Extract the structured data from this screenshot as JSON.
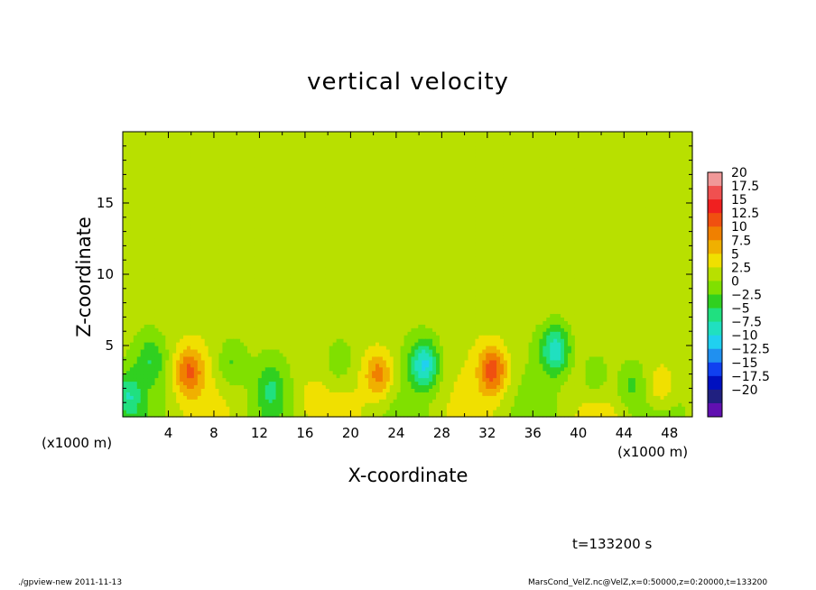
{
  "chart_data": {
    "type": "heatmap",
    "title": "vertical velocity",
    "xlabel": "X-coordinate",
    "ylabel": "Z-coordinate",
    "x_unit_left": "(x1000 m)",
    "x_unit_right": "(x1000 m)",
    "xlim": [
      0,
      50
    ],
    "ylim": [
      0,
      20
    ],
    "x_ticks": [
      4,
      8,
      12,
      16,
      20,
      24,
      28,
      32,
      36,
      40,
      44,
      48
    ],
    "y_ticks": [
      5,
      10,
      15
    ],
    "background_value": 1.2,
    "features": [
      {
        "x": 0.5,
        "z": 1.5,
        "value": -6
      },
      {
        "x": 2.5,
        "z": 4.0,
        "value": -4
      },
      {
        "x": 5.8,
        "z": 3.2,
        "value": 10
      },
      {
        "x": 9.5,
        "z": 3.8,
        "value": -3
      },
      {
        "x": 13.0,
        "z": 2.0,
        "value": -4
      },
      {
        "x": 16.3,
        "z": 1.2,
        "value": 3
      },
      {
        "x": 19.0,
        "z": 4.0,
        "value": -3
      },
      {
        "x": 22.5,
        "z": 3.0,
        "value": 9
      },
      {
        "x": 26.5,
        "z": 3.7,
        "value": -10
      },
      {
        "x": 32.5,
        "z": 3.3,
        "value": 11
      },
      {
        "x": 38.0,
        "z": 4.7,
        "value": -9
      },
      {
        "x": 41.5,
        "z": 3.0,
        "value": -3
      },
      {
        "x": 44.5,
        "z": 2.2,
        "value": -3
      },
      {
        "x": 47.3,
        "z": 2.3,
        "value": 6
      }
    ],
    "colorbar": {
      "levels": [
        "20",
        "17.5",
        "15",
        "12.5",
        "10",
        "7.5",
        "5",
        "2.5",
        "0",
        "−2.5",
        "−5",
        "−7.5",
        "−10",
        "−12.5",
        "−15",
        "−17.5",
        "−20"
      ],
      "colors": [
        "#f09898",
        "#f05050",
        "#f02020",
        "#f05010",
        "#f08000",
        "#f0b000",
        "#f0e000",
        "#b8e000",
        "#80e000",
        "#30d020",
        "#20e080",
        "#20e0c0",
        "#20d0f0",
        "#2090f0",
        "#1040f0",
        "#0010c0",
        "#202080",
        "#6010b0"
      ]
    }
  },
  "time_label": "t=133200 s",
  "footer_left": "./gpview-new   2011-11-13",
  "footer_right": "MarsCond_VelZ.nc@VelZ,x=0:50000,z=0:20000,t=133200"
}
